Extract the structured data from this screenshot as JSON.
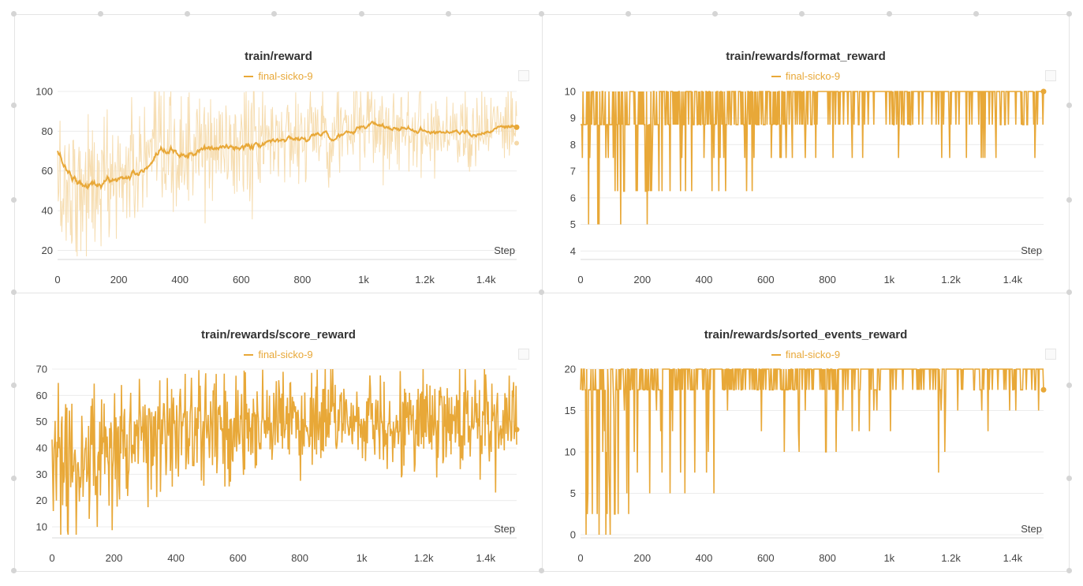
{
  "colors": {
    "series": "#e8a838",
    "series_light": "#f5d9a8",
    "grid": "#ececec",
    "axis_text": "#444444"
  },
  "chart_data": [
    {
      "id": "reward",
      "type": "line",
      "title": "train/reward",
      "legend": "final-sicko-9",
      "xlabel": "Step",
      "xlim": [
        0,
        1500
      ],
      "ylim": [
        17,
        100
      ],
      "xticks": [
        0,
        200,
        400,
        600,
        800,
        1000,
        1200,
        1400
      ],
      "xtick_labels": [
        "0",
        "200",
        "400",
        "600",
        "800",
        "1k",
        "1.2k",
        "1.4k"
      ],
      "yticks": [
        20,
        40,
        60,
        80,
        100
      ],
      "ytick_labels": [
        "20",
        "40",
        "60",
        "80",
        "100"
      ],
      "smoothed": true,
      "anchors": [
        [
          0,
          52
        ],
        [
          5,
          55
        ],
        [
          15,
          50
        ],
        [
          40,
          53
        ],
        [
          70,
          52
        ],
        [
          100,
          52
        ],
        [
          150,
          55
        ],
        [
          200,
          58
        ],
        [
          300,
          63
        ],
        [
          400,
          68
        ],
        [
          500,
          71
        ],
        [
          600,
          73
        ],
        [
          700,
          76
        ],
        [
          800,
          79
        ],
        [
          900,
          80
        ],
        [
          1000,
          82
        ],
        [
          1100,
          82
        ],
        [
          1200,
          81
        ],
        [
          1300,
          81
        ],
        [
          1400,
          81
        ],
        [
          1500,
          82
        ]
      ],
      "noise": [
        [
          0,
          25
        ],
        [
          200,
          22
        ],
        [
          500,
          20
        ],
        [
          800,
          17
        ],
        [
          1000,
          15
        ],
        [
          1500,
          13
        ]
      ],
      "end_value": 82,
      "raw_end_value": 74
    },
    {
      "id": "format",
      "type": "line",
      "title": "train/rewards/format_reward",
      "legend": "final-sicko-9",
      "xlabel": "Step",
      "xlim": [
        0,
        1500
      ],
      "ylim": [
        3.8,
        10
      ],
      "xticks": [
        0,
        200,
        400,
        600,
        800,
        1000,
        1200,
        1400
      ],
      "xtick_labels": [
        "0",
        "200",
        "400",
        "600",
        "800",
        "1k",
        "1.2k",
        "1.4k"
      ],
      "yticks": [
        4,
        5,
        6,
        7,
        8,
        9,
        10
      ],
      "ytick_labels": [
        "4",
        "5",
        "6",
        "7",
        "8",
        "9",
        "10"
      ],
      "levels": [
        10,
        8.75,
        7.5,
        6.25,
        5
      ],
      "max_value": 10,
      "dips": [
        [
          55,
          5
        ],
        [
          60,
          5
        ],
        [
          215,
          5
        ],
        [
          210,
          6.25
        ],
        [
          140,
          6.25
        ],
        [
          30,
          7.5
        ],
        [
          90,
          7.5
        ],
        [
          400,
          7.5
        ],
        [
          650,
          7.5
        ],
        [
          880,
          7.5
        ],
        [
          1030,
          7.5
        ],
        [
          1170,
          7.5
        ],
        [
          1310,
          7.5
        ]
      ],
      "end_value": 10
    },
    {
      "id": "score",
      "type": "line",
      "title": "train/rewards/score_reward",
      "legend": "final-sicko-9",
      "xlabel": "Step",
      "xlim": [
        0,
        1500
      ],
      "ylim": [
        7,
        70
      ],
      "xticks": [
        0,
        200,
        400,
        600,
        800,
        1000,
        1200,
        1400
      ],
      "xtick_labels": [
        "0",
        "200",
        "400",
        "600",
        "800",
        "1k",
        "1.2k",
        "1.4k"
      ],
      "yticks": [
        10,
        20,
        30,
        40,
        50,
        60,
        70
      ],
      "ytick_labels": [
        "10",
        "20",
        "30",
        "40",
        "50",
        "60",
        "70"
      ],
      "anchors": [
        [
          0,
          32
        ],
        [
          100,
          33
        ],
        [
          200,
          40
        ],
        [
          300,
          44
        ],
        [
          400,
          47
        ],
        [
          600,
          49
        ],
        [
          800,
          50
        ],
        [
          1000,
          51
        ],
        [
          1200,
          50
        ],
        [
          1400,
          50
        ],
        [
          1500,
          50
        ]
      ],
      "noise": [
        [
          0,
          18
        ],
        [
          300,
          15
        ],
        [
          800,
          14
        ],
        [
          1500,
          13
        ]
      ],
      "end_value": 47
    },
    {
      "id": "sorted",
      "type": "line",
      "title": "train/rewards/sorted_events_reward",
      "legend": "final-sicko-9",
      "xlabel": "Step",
      "xlim": [
        0,
        1500
      ],
      "ylim": [
        0,
        20
      ],
      "xticks": [
        0,
        200,
        400,
        600,
        800,
        1000,
        1200,
        1400
      ],
      "xtick_labels": [
        "0",
        "200",
        "400",
        "600",
        "800",
        "1k",
        "1.2k",
        "1.4k"
      ],
      "yticks": [
        0,
        5,
        10,
        15,
        20
      ],
      "ytick_labels": [
        "0",
        "5",
        "10",
        "15",
        "20"
      ],
      "levels": [
        20,
        17.5,
        15,
        12.5,
        10,
        7.5,
        5,
        2.5,
        0
      ],
      "max_value": 20,
      "dips": [
        [
          60,
          0
        ],
        [
          95,
          0
        ],
        [
          110,
          2.5
        ],
        [
          290,
          5
        ],
        [
          370,
          7.5
        ],
        [
          660,
          10
        ],
        [
          795,
          10
        ],
        [
          1160,
          7.5
        ],
        [
          1180,
          10
        ],
        [
          1320,
          12.5
        ]
      ],
      "end_value": 17.5
    }
  ]
}
